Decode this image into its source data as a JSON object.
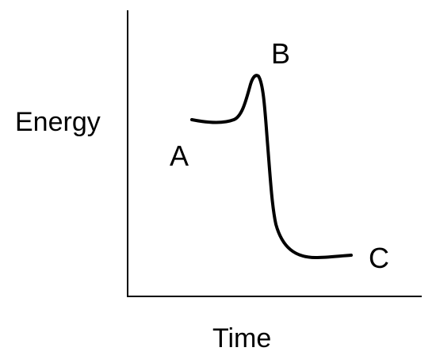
{
  "axes": {
    "y_label": "Energy",
    "x_label": "Time"
  },
  "points": {
    "a": "A",
    "b": "B",
    "c": "C"
  },
  "colors": {
    "ink": "#000000",
    "background": "#ffffff"
  }
}
